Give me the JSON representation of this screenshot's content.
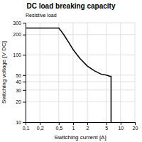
{
  "chart_data": {
    "type": "line",
    "title": "DC load breaking capacity",
    "subtitle": "Resistive load",
    "xlabel": "Switching current [A]",
    "ylabel": "Switching voltage [V DC]",
    "x": [
      0.1,
      0.25,
      0.5,
      0.55,
      0.65,
      0.8,
      1.0,
      1.4,
      2.0,
      2.8,
      3.8,
      5.0,
      6.0,
      6.3,
      6.3,
      6.3
    ],
    "values": [
      250,
      250,
      250,
      230,
      195,
      155,
      120,
      88,
      68,
      58,
      52,
      50,
      48,
      48,
      12,
      10
    ],
    "color": "#000000",
    "log": true,
    "grid": true,
    "xlim": [
      0.1,
      20
    ],
    "ylim": [
      10,
      300
    ],
    "xticks": [
      {
        "value": 0.1,
        "label": "0,1"
      },
      {
        "value": 0.2,
        "label": "0,2"
      },
      {
        "value": 0.5,
        "label": "0,5"
      },
      1,
      2,
      5,
      10,
      20
    ],
    "yticks": [
      10,
      20,
      30,
      40,
      50,
      100,
      200,
      300
    ]
  }
}
